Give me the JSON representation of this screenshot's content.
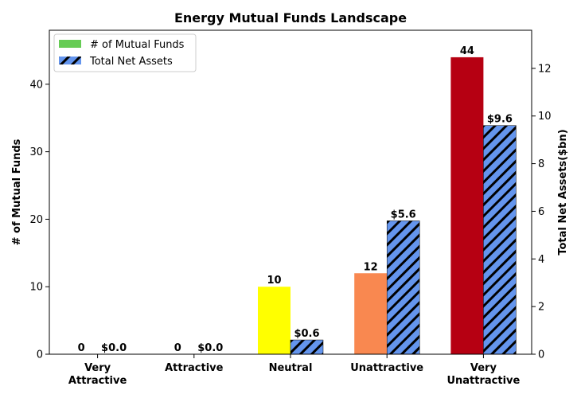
{
  "chart_data": {
    "type": "bar",
    "title": "Energy Mutual Funds Landscape",
    "categories": [
      [
        "Very",
        "Attractive"
      ],
      [
        "Attractive"
      ],
      [
        "Neutral"
      ],
      [
        "Unattractive"
      ],
      [
        "Very",
        "Unattractive"
      ]
    ],
    "series": [
      {
        "name": "# of Mutual Funds",
        "axis": "left",
        "values": [
          0,
          0,
          10,
          12,
          44
        ],
        "labels": [
          "0",
          "0",
          "10",
          "12",
          "44"
        ],
        "colors": [
          "#66cc55",
          "#66cc55",
          "#ffff00",
          "#f98850",
          "#b60012"
        ],
        "legend_color": "#66cc55"
      },
      {
        "name": "Total Net Assets",
        "axis": "right",
        "values": [
          0.0,
          0.0,
          0.6,
          5.6,
          9.6
        ],
        "labels": [
          "$0.0",
          "$0.0",
          "$0.6",
          "$5.6",
          "$9.6"
        ],
        "color": "#6495ed",
        "hatch": "diagonal"
      }
    ],
    "ylabel_left": "# of Mutual Funds",
    "ylabel_right": "Total Net Assets($bn)",
    "ylim_left": [
      0,
      48
    ],
    "ylim_right": [
      0,
      13.6
    ],
    "yticks_left": [
      0,
      10,
      20,
      30,
      40
    ],
    "yticks_right": [
      0,
      2,
      4,
      6,
      8,
      10,
      12
    ],
    "legend_position": "top-left",
    "grid": false
  }
}
